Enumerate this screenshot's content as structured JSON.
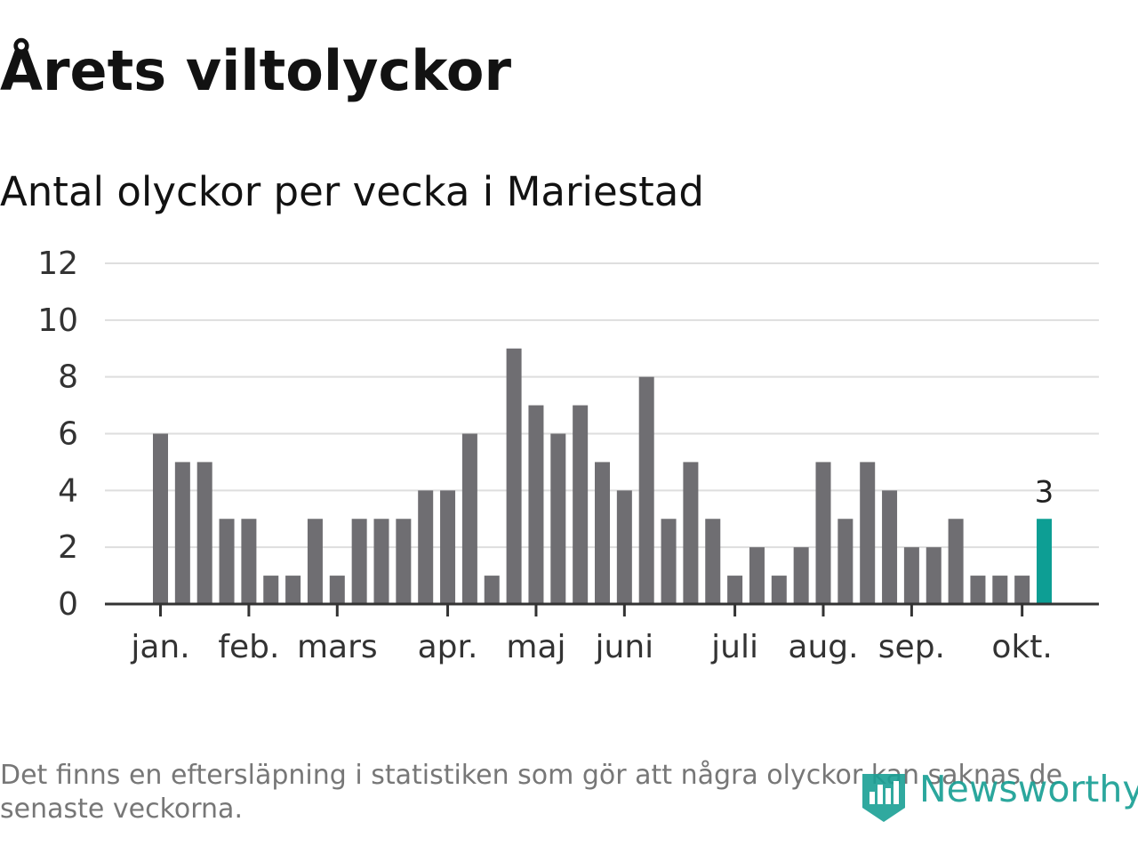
{
  "header": {
    "title": "Årets viltolyckor",
    "subtitle": "Antal olyckor per vecka i Mariestad"
  },
  "chart_data": {
    "type": "bar",
    "title": "Årets viltolyckor",
    "subtitle": "Antal olyckor per vecka i Mariestad",
    "xlabel": "",
    "ylabel": "",
    "ylim": [
      0,
      12
    ],
    "yticks": [
      0,
      2,
      4,
      6,
      8,
      10,
      12
    ],
    "grid": true,
    "values": [
      6,
      5,
      5,
      3,
      3,
      1,
      1,
      3,
      1,
      3,
      3,
      3,
      4,
      4,
      6,
      1,
      9,
      7,
      6,
      7,
      5,
      4,
      8,
      3,
      5,
      3,
      1,
      2,
      1,
      2,
      5,
      3,
      5,
      4,
      2,
      2,
      3,
      1,
      1,
      1,
      3
    ],
    "highlight_index": 40,
    "highlight_label": "3",
    "month_labels": [
      {
        "label": "jan.",
        "bar_index": 0
      },
      {
        "label": "feb.",
        "bar_index": 4
      },
      {
        "label": "mars",
        "bar_index": 8
      },
      {
        "label": "apr.",
        "bar_index": 13
      },
      {
        "label": "maj",
        "bar_index": 17
      },
      {
        "label": "juni",
        "bar_index": 21
      },
      {
        "label": "juli",
        "bar_index": 26
      },
      {
        "label": "aug.",
        "bar_index": 30
      },
      {
        "label": "sep.",
        "bar_index": 34
      },
      {
        "label": "okt.",
        "bar_index": 39
      }
    ],
    "colors": {
      "bar": "#6f6e72",
      "highlight": "#0d9e94",
      "grid": "#dedede",
      "axis": "#333333",
      "tick_text": "#333333"
    }
  },
  "footer": {
    "note": "Det finns en eftersläpning i statistiken som gör att några olyckor kan saknas de senaste veckorna.",
    "brand": "Newsworthy",
    "brand_icon": "bar-chart-shield-icon",
    "brand_color": "#1aa095"
  }
}
